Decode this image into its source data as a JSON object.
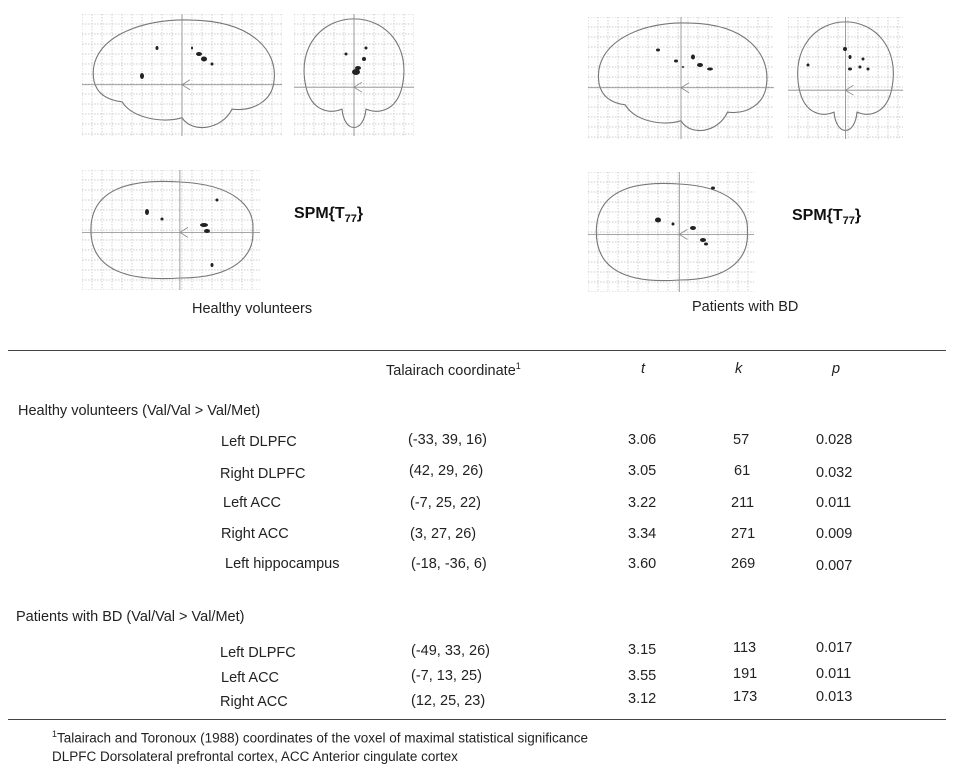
{
  "figure": {
    "spm_label": "SPM{T",
    "spm_sub": "77",
    "spm_close": "}",
    "groups": [
      {
        "caption": "Healthy volunteers"
      },
      {
        "caption": "Patients with BD"
      }
    ]
  },
  "table": {
    "header": {
      "coord": "Talairach coordinate",
      "coord_sup": "1",
      "t": "t",
      "k": "k",
      "p": "p"
    },
    "sections": [
      {
        "title": "Healthy volunteers (Val/Val > Val/Met)",
        "rows": [
          {
            "region": "Left DLPFC",
            "coord": "(-33, 39, 16)",
            "t": "3.06",
            "k": "57",
            "p": "0.028"
          },
          {
            "region": "Right DLPFC",
            "coord": "(42, 29, 26)",
            "t": "3.05",
            "k": "61",
            "p": "0.032"
          },
          {
            "region": "Left ACC",
            "coord": "(-7, 25, 22)",
            "t": "3.22",
            "k": "211",
            "p": "0.011"
          },
          {
            "region": "Right ACC",
            "coord": "(3, 27, 26)",
            "t": "3.34",
            "k": "271",
            "p": "0.009"
          },
          {
            "region": "Left hippocampus",
            "coord": "(-18, -36, 6)",
            "t": "3.60",
            "k": "269",
            "p": "0.007"
          }
        ]
      },
      {
        "title": "Patients with BD (Val/Val > Val/Met)",
        "rows": [
          {
            "region": "Left DLPFC",
            "coord": "(-49, 33, 26)",
            "t": "3.15",
            "k": "113",
            "p": "0.017"
          },
          {
            "region": "Left ACC",
            "coord": "(-7, 13, 25)",
            "t": "3.55",
            "k": "191",
            "p": "0.011"
          },
          {
            "region": "Right ACC",
            "coord": "(12, 25, 23)",
            "t": "3.12",
            "k": "173",
            "p": "0.013"
          }
        ]
      }
    ]
  },
  "footnotes": {
    "note1_sup": "1",
    "note1": "Talairach and Toronoux (1988) coordinates of the voxel of maximal statistical significance",
    "note2": "DLPFC Dorsolateral prefrontal cortex, ACC Anterior cingulate cortex"
  }
}
